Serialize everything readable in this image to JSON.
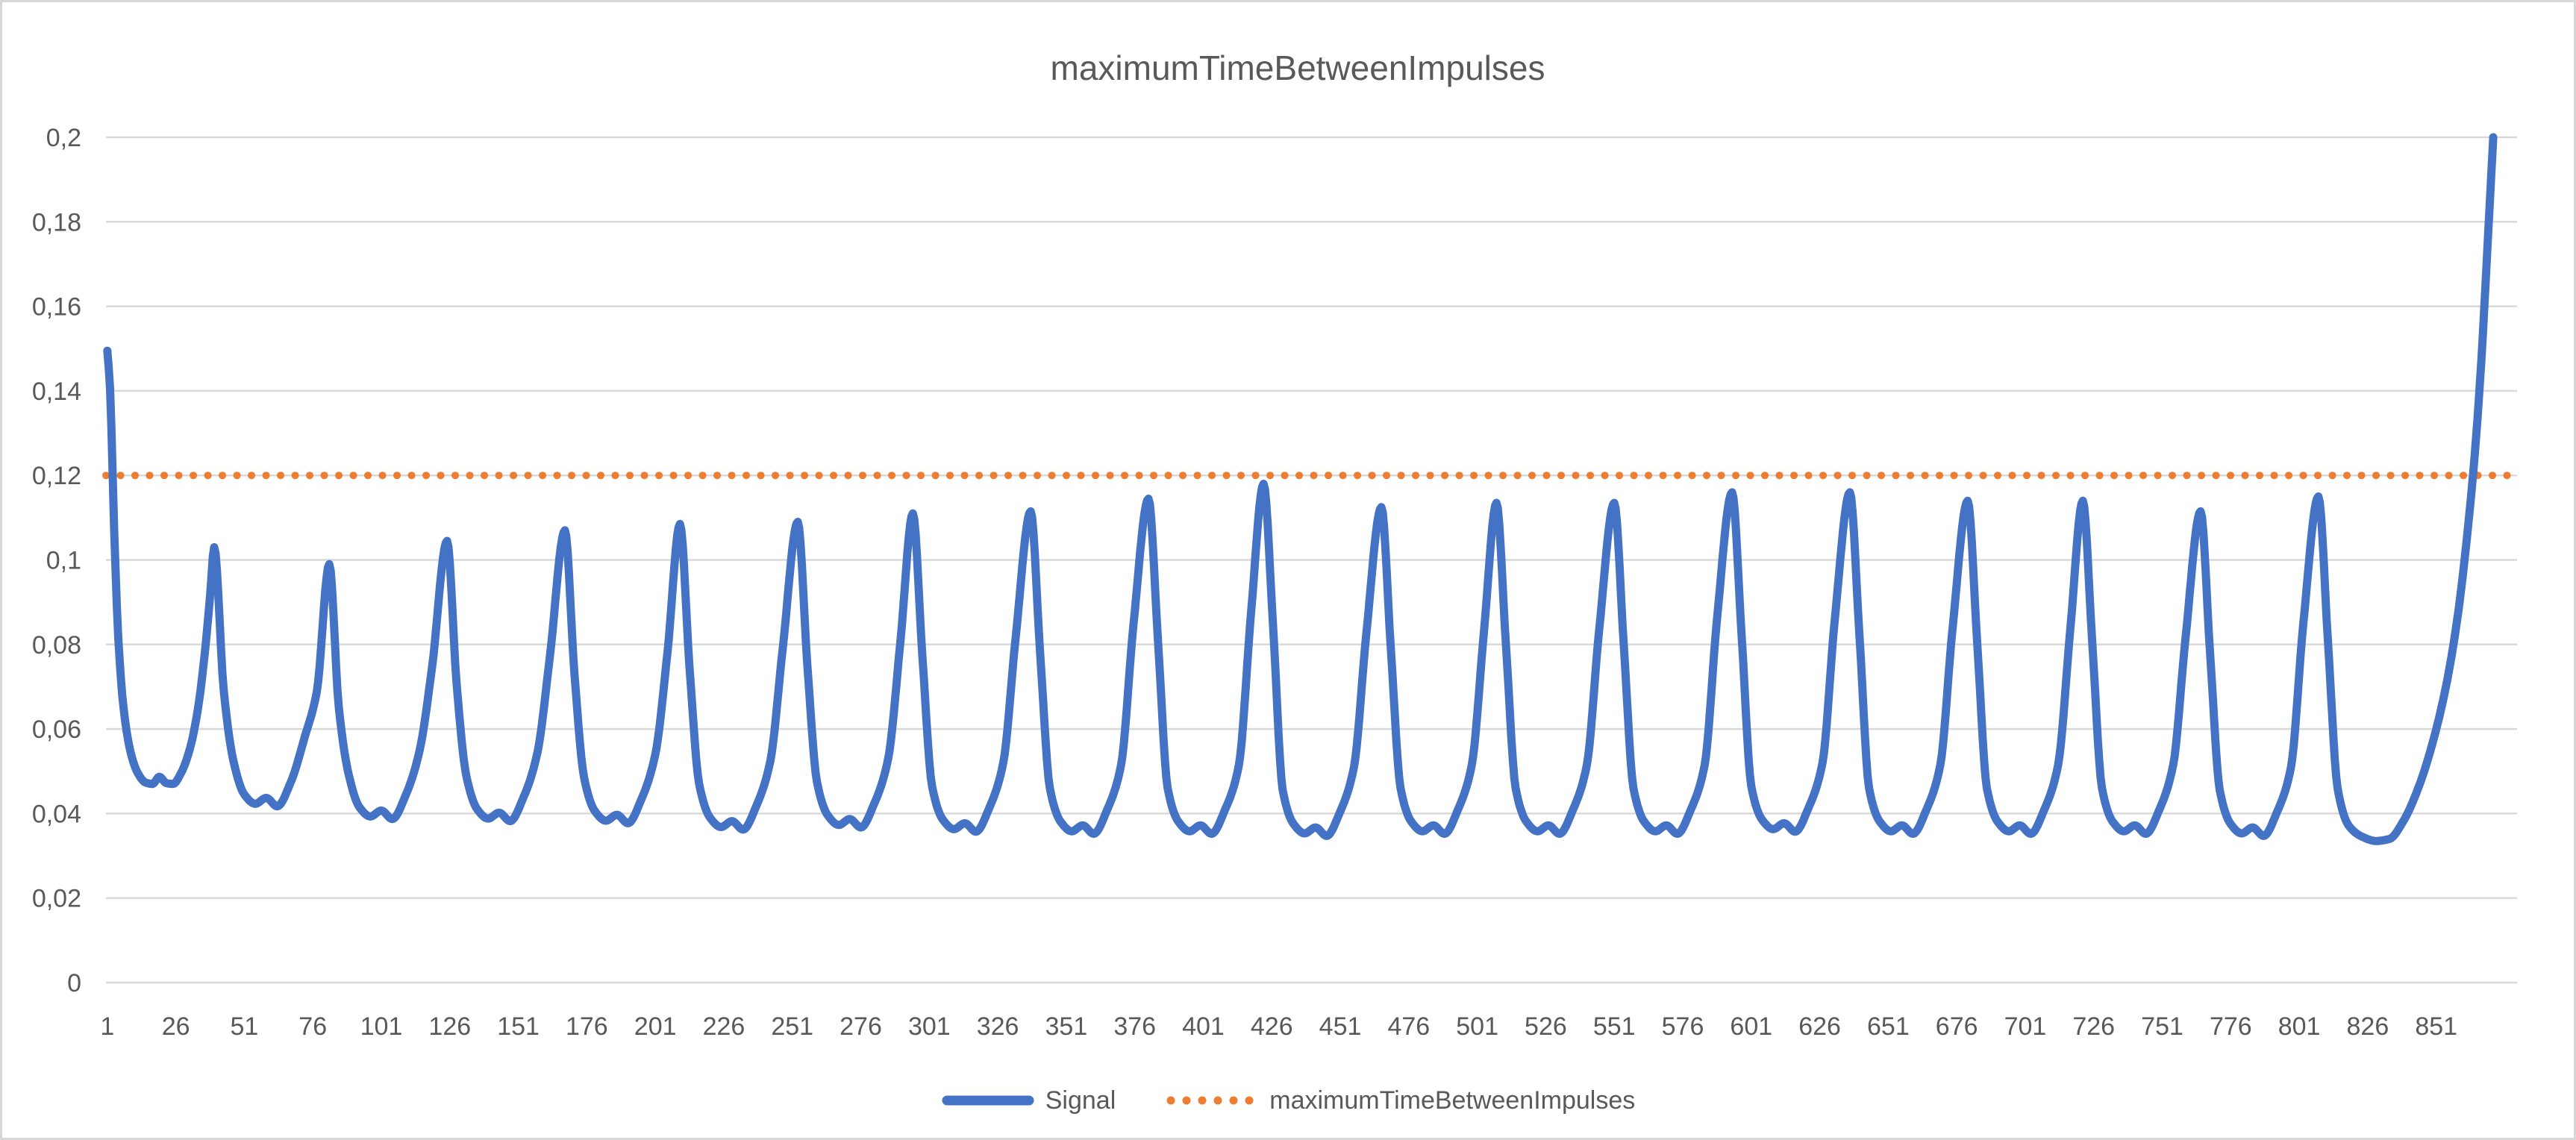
{
  "window": {
    "background_color": "#ffffff",
    "border_color": "#d6d6d6",
    "text_color": "#595959",
    "gridline_color": "#d9d9d9"
  },
  "chart_data": {
    "type": "line",
    "title": "maximumTimeBetweenImpulses",
    "grid": true,
    "plot_background": "#ffffff",
    "x_axis": {
      "kind": "category",
      "min_category": 1,
      "plot_categories": 880,
      "tick_values": [
        1,
        26,
        51,
        76,
        101,
        126,
        151,
        176,
        201,
        226,
        251,
        276,
        301,
        326,
        351,
        376,
        401,
        426,
        451,
        476,
        501,
        526,
        551,
        576,
        601,
        626,
        651,
        676,
        701,
        726,
        751,
        776,
        801,
        826,
        851
      ],
      "tick_labels": [
        "1",
        "26",
        "51",
        "76",
        "101",
        "126",
        "151",
        "176",
        "201",
        "226",
        "251",
        "276",
        "301",
        "326",
        "351",
        "376",
        "401",
        "426",
        "451",
        "476",
        "501",
        "526",
        "551",
        "576",
        "601",
        "626",
        "651",
        "676",
        "701",
        "726",
        "751",
        "776",
        "801",
        "826",
        "851"
      ]
    },
    "y_axis": {
      "min": 0,
      "max": 0.2,
      "step": 0.02,
      "decimal_separator": ",",
      "tick_values": [
        0,
        0.02,
        0.04,
        0.06,
        0.08,
        0.1,
        0.12,
        0.14,
        0.16,
        0.18,
        0.2
      ],
      "tick_labels": [
        "0",
        "0,02",
        "0,04",
        "0,06",
        "0,08",
        "0,1",
        "0,12",
        "0,14",
        "0,16",
        "0,18",
        "0,2"
      ]
    },
    "legend": {
      "position": "bottom"
    },
    "series": [
      {
        "name": "Signal",
        "color": "#4472C4",
        "style": "solid",
        "stroke_width": 11,
        "description": "Periodic impulse-interval signal: starts at 0.15, repeating sharp peaks ~0.10-0.118 every ~42-43 samples with flat minima ~0.034-0.048, final rise to 0.2 at the right edge",
        "initial_points": [
          [
            1,
            0.1495
          ],
          [
            2,
            0.1405
          ],
          [
            3.5,
            0.107
          ],
          [
            5,
            0.0815
          ],
          [
            7,
            0.0645
          ],
          [
            9.5,
            0.0545
          ],
          [
            12,
            0.0497
          ],
          [
            15,
            0.0473
          ],
          [
            17.5,
            0.047
          ],
          [
            20,
            0.0487
          ],
          [
            22.5,
            0.0472
          ],
          [
            25,
            0.047
          ],
          [
            28,
            0.0497
          ],
          [
            31,
            0.055
          ],
          [
            34,
            0.0645
          ],
          [
            36.5,
            0.0775
          ],
          [
            38.5,
            0.0915
          ]
        ],
        "peaks": {
          "x": [
            40,
            82,
            125,
            168,
            210,
            253,
            295,
            338,
            381,
            423,
            466,
            508,
            551,
            594,
            637,
            680,
            722,
            765,
            808
          ],
          "y": [
            0.103,
            0.099,
            0.1045,
            0.107,
            0.1085,
            0.109,
            0.111,
            0.1115,
            0.1145,
            0.118,
            0.1125,
            0.1135,
            0.1135,
            0.116,
            0.116,
            0.114,
            0.114,
            0.1115,
            0.115
          ]
        },
        "minima_after_peaks": [
          0.0415,
          0.0385,
          0.038,
          0.0375,
          0.036,
          0.0365,
          0.0355,
          0.035,
          0.035,
          0.0345,
          0.035,
          0.035,
          0.035,
          0.0355,
          0.035,
          0.035,
          0.035,
          0.0345,
          0.0335
        ],
        "cycle_shape": [
          [
            3.5,
            "peak-",
            0.034
          ],
          [
            7,
            "min+",
            0.011
          ],
          [
            11,
            "min+",
            0.003
          ],
          [
            15,
            "min+",
            0.0008
          ],
          [
            19,
            "min+",
            0.0022
          ],
          [
            23,
            "min+",
            0.0002
          ],
          [
            28,
            "min+",
            0.006
          ],
          [
            33,
            "min+",
            0.0165
          ],
          [
            37.5,
            "next-",
            0.03
          ]
        ],
        "final_points": [
          [
            811.5,
            0.0805
          ],
          [
            815,
            0.046
          ],
          [
            819,
            0.0372
          ],
          [
            824,
            0.0345
          ],
          [
            829,
            0.0335
          ],
          [
            834,
            0.034
          ],
          [
            839,
            0.0382
          ],
          [
            845,
            0.047
          ],
          [
            850,
            0.0575
          ],
          [
            855,
            0.0715
          ],
          [
            859,
            0.0875
          ],
          [
            862,
            0.104
          ],
          [
            865,
            0.1245
          ],
          [
            867.5,
            0.1475
          ],
          [
            869.5,
            0.1715
          ],
          [
            871,
            0.19
          ],
          [
            871.8,
            0.2
          ]
        ]
      },
      {
        "name": "maximumTimeBetweenImpulses",
        "color": "#ED7D31",
        "style": "round-dot",
        "stroke_width": 10,
        "constant_value": 0.12
      }
    ]
  }
}
